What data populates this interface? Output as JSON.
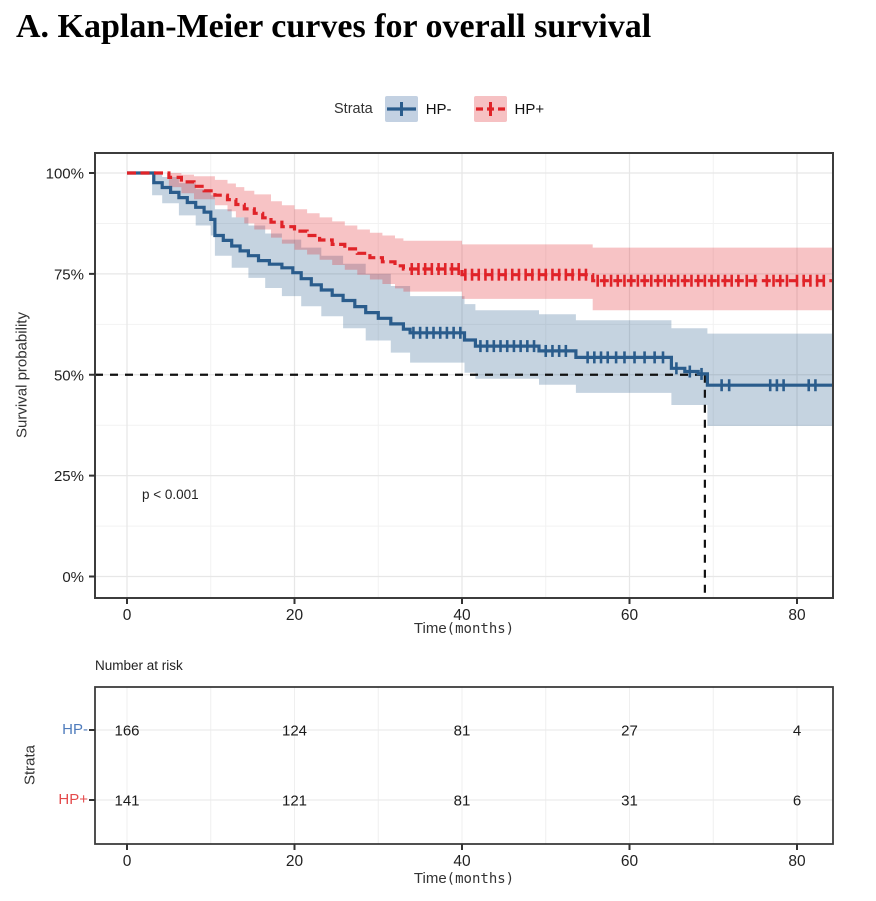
{
  "title": "A. Kaplan-Meier curves for overall survival",
  "legend": {
    "label": "Strata",
    "items": [
      {
        "label": "HP-",
        "line_color": "#2a5c8c",
        "key_bg": "#c3d1e2",
        "style": "solid"
      },
      {
        "label": "HP+",
        "line_color": "#e02328",
        "key_bg": "#f6c1c3",
        "style": "dashed"
      }
    ]
  },
  "main_plot": {
    "ylabel": "Survival probability",
    "xlabel_text": "Time",
    "xlabel_mono": "(months)",
    "pvalue": "p < 0.001",
    "ytick_labels": [
      "0%",
      "25%",
      "50%",
      "75%",
      "100%"
    ],
    "xtick_labels": [
      "0",
      "20",
      "40",
      "60",
      "80"
    ]
  },
  "risk_table": {
    "title": "Number at risk",
    "ylabel": "Strata",
    "xlabel_text": "Time",
    "xlabel_mono": "(months)",
    "xtick_labels": [
      "0",
      "20",
      "40",
      "60",
      "80"
    ],
    "rows": [
      {
        "label": "HP-",
        "label_color": "#4f7cbc",
        "values": [
          "166",
          "124",
          "81",
          "27",
          "4"
        ]
      },
      {
        "label": "HP+",
        "label_color": "#e44b4c",
        "values": [
          "141",
          "121",
          "81",
          "31",
          "6"
        ]
      }
    ]
  },
  "chart_data": {
    "type": "line",
    "subtype": "kaplan-meier-step",
    "title": "A. Kaplan-Meier curves for overall survival",
    "xlabel": "Time(months)",
    "ylabel": "Survival probability",
    "xlim": [
      0,
      84.3
    ],
    "ylim_percent": [
      0,
      100
    ],
    "xticks": [
      0,
      20,
      40,
      60,
      80
    ],
    "minor_xticks": [
      10,
      30,
      50,
      70
    ],
    "yticks_percent": [
      0,
      25,
      50,
      75,
      100
    ],
    "minor_yticks_percent": [
      12.5,
      37.5,
      62.5,
      87.5
    ],
    "grid": true,
    "legend_position": "top",
    "pvalue": "p < 0.001",
    "median_reference": {
      "time": 69,
      "survival_percent": 50
    },
    "series": [
      {
        "name": "HP-",
        "color": "#2a5c8c",
        "band_alpha": 0.27,
        "line_style": "solid",
        "steps": [
          [
            0,
            100
          ],
          [
            3,
            100
          ],
          [
            3.2,
            97.6
          ],
          [
            4.2,
            96.4
          ],
          [
            5.2,
            95.2
          ],
          [
            6.2,
            93.9
          ],
          [
            7.2,
            92.7
          ],
          [
            8.2,
            91.5
          ],
          [
            9.2,
            90.3
          ],
          [
            10,
            88.5
          ],
          [
            10.5,
            84.5
          ],
          [
            11.5,
            83.3
          ],
          [
            12.5,
            81.9
          ],
          [
            13.5,
            80.7
          ],
          [
            14.5,
            79.5
          ],
          [
            15.7,
            78.3
          ],
          [
            17,
            77.4
          ],
          [
            18.5,
            76.5
          ],
          [
            19.8,
            75.3
          ],
          [
            20.8,
            73.8
          ],
          [
            22,
            72.3
          ],
          [
            23.2,
            71
          ],
          [
            24.5,
            69.7
          ],
          [
            25.8,
            68.4
          ],
          [
            27.2,
            66.9
          ],
          [
            28.5,
            65.4
          ],
          [
            30,
            64
          ],
          [
            31.5,
            62.6
          ],
          [
            33,
            61.3
          ],
          [
            33.8,
            60.4
          ],
          [
            40.3,
            58.6
          ],
          [
            41.6,
            57.1
          ],
          [
            49.2,
            55.9
          ],
          [
            53.6,
            54.3
          ],
          [
            65,
            51.6
          ],
          [
            66.6,
            50.8
          ],
          [
            68.2,
            50.2
          ],
          [
            69.3,
            47.4
          ],
          [
            84.3,
            47.4
          ]
        ],
        "censors": [
          [
            34.2,
            60.4
          ],
          [
            35,
            60.4
          ],
          [
            35.8,
            60.4
          ],
          [
            36.6,
            60.4
          ],
          [
            37.4,
            60.4
          ],
          [
            38.2,
            60.4
          ],
          [
            39,
            60.4
          ],
          [
            39.8,
            60.4
          ],
          [
            42.2,
            57.1
          ],
          [
            43,
            57.1
          ],
          [
            43.8,
            57.1
          ],
          [
            44.6,
            57.1
          ],
          [
            45.4,
            57.1
          ],
          [
            46.2,
            57.1
          ],
          [
            47,
            57.1
          ],
          [
            47.8,
            57.1
          ],
          [
            48.6,
            57.1
          ],
          [
            50,
            55.9
          ],
          [
            50.8,
            55.9
          ],
          [
            51.6,
            55.9
          ],
          [
            52.4,
            55.9
          ],
          [
            55,
            54.3
          ],
          [
            55.8,
            54.3
          ],
          [
            56.6,
            54.3
          ],
          [
            57.4,
            54.3
          ],
          [
            58.4,
            54.3
          ],
          [
            59.4,
            54.3
          ],
          [
            60.6,
            54.3
          ],
          [
            61.8,
            54.3
          ],
          [
            63,
            54.3
          ],
          [
            64,
            54.3
          ],
          [
            65.6,
            51.6
          ],
          [
            67.2,
            50.8
          ],
          [
            68.6,
            50.2
          ],
          [
            71,
            47.4
          ],
          [
            71.9,
            47.4
          ],
          [
            76.8,
            47.4
          ],
          [
            77.6,
            47.4
          ],
          [
            78.4,
            47.4
          ],
          [
            81.4,
            47.4
          ],
          [
            82.2,
            47.4
          ]
        ],
        "band_upper": [
          [
            0,
            100
          ],
          [
            3,
            100
          ],
          [
            4.2,
            99
          ],
          [
            6.2,
            97.5
          ],
          [
            8.2,
            96
          ],
          [
            10,
            94.5
          ],
          [
            10.5,
            91
          ],
          [
            12.5,
            89
          ],
          [
            14.5,
            87
          ],
          [
            16.5,
            85
          ],
          [
            18.5,
            83.5
          ],
          [
            20.8,
            81.5
          ],
          [
            23.2,
            79.5
          ],
          [
            25.8,
            77.5
          ],
          [
            28.5,
            75
          ],
          [
            31.5,
            72
          ],
          [
            33.8,
            69.5
          ],
          [
            40.3,
            67.5
          ],
          [
            41.6,
            66
          ],
          [
            49.2,
            65
          ],
          [
            53.6,
            63.5
          ],
          [
            65,
            61.5
          ],
          [
            69.3,
            60.2
          ],
          [
            84.3,
            60.2
          ]
        ],
        "band_lower": [
          [
            0,
            100
          ],
          [
            3,
            94.5
          ],
          [
            4.2,
            92.5
          ],
          [
            6.2,
            89.5
          ],
          [
            8.2,
            87
          ],
          [
            10,
            84.5
          ],
          [
            10.5,
            79.5
          ],
          [
            12.5,
            76.5
          ],
          [
            14.5,
            74
          ],
          [
            16.5,
            71.5
          ],
          [
            18.5,
            69.5
          ],
          [
            20.8,
            67
          ],
          [
            23.2,
            64.5
          ],
          [
            25.8,
            61.5
          ],
          [
            28.5,
            58.5
          ],
          [
            31.5,
            55.5
          ],
          [
            33.8,
            53
          ],
          [
            40.3,
            50.5
          ],
          [
            41.6,
            49
          ],
          [
            49.2,
            47.5
          ],
          [
            53.6,
            45.5
          ],
          [
            65,
            42.5
          ],
          [
            69.3,
            37.3
          ],
          [
            84.3,
            37.3
          ]
        ]
      },
      {
        "name": "HP+",
        "color": "#e02328",
        "band_alpha": 0.27,
        "line_style": "dashed",
        "steps": [
          [
            0,
            100
          ],
          [
            4.8,
            100
          ],
          [
            5,
            98.9
          ],
          [
            6.5,
            97.8
          ],
          [
            8,
            96.7
          ],
          [
            9.2,
            95.6
          ],
          [
            10.5,
            94.5
          ],
          [
            12,
            93.4
          ],
          [
            13,
            92.2
          ],
          [
            14,
            91.1
          ],
          [
            15.2,
            90
          ],
          [
            16.2,
            88.9
          ],
          [
            17.2,
            87.8
          ],
          [
            18.5,
            86.7
          ],
          [
            20,
            85.6
          ],
          [
            21.5,
            84.5
          ],
          [
            23,
            83.4
          ],
          [
            24.5,
            82.3
          ],
          [
            26,
            81.2
          ],
          [
            27.5,
            80.1
          ],
          [
            29,
            79
          ],
          [
            30.5,
            78
          ],
          [
            32,
            77
          ],
          [
            33,
            76.2
          ],
          [
            40,
            74.8
          ],
          [
            55.6,
            73.3
          ],
          [
            84.3,
            73.3
          ]
        ],
        "censors": [
          [
            34,
            76.2
          ],
          [
            34.8,
            76.2
          ],
          [
            35.6,
            76.2
          ],
          [
            36.4,
            76.2
          ],
          [
            37.2,
            76.2
          ],
          [
            38,
            76.2
          ],
          [
            38.8,
            76.2
          ],
          [
            39.6,
            76.2
          ],
          [
            40.4,
            74.8
          ],
          [
            41.2,
            74.8
          ],
          [
            42,
            74.8
          ],
          [
            42.8,
            74.8
          ],
          [
            43.6,
            74.8
          ],
          [
            44.4,
            74.8
          ],
          [
            45.2,
            74.8
          ],
          [
            46,
            74.8
          ],
          [
            46.8,
            74.8
          ],
          [
            47.6,
            74.8
          ],
          [
            48.4,
            74.8
          ],
          [
            49.2,
            74.8
          ],
          [
            50,
            74.8
          ],
          [
            50.8,
            74.8
          ],
          [
            51.6,
            74.8
          ],
          [
            52.4,
            74.8
          ],
          [
            53.2,
            74.8
          ],
          [
            54,
            74.8
          ],
          [
            54.8,
            74.8
          ],
          [
            56.2,
            73.3
          ],
          [
            57,
            73.3
          ],
          [
            57.8,
            73.3
          ],
          [
            58.6,
            73.3
          ],
          [
            59.4,
            73.3
          ],
          [
            60.2,
            73.3
          ],
          [
            61,
            73.3
          ],
          [
            61.8,
            73.3
          ],
          [
            62.6,
            73.3
          ],
          [
            63.4,
            73.3
          ],
          [
            64.2,
            73.3
          ],
          [
            65,
            73.3
          ],
          [
            65.8,
            73.3
          ],
          [
            66.6,
            73.3
          ],
          [
            67.4,
            73.3
          ],
          [
            68.2,
            73.3
          ],
          [
            69,
            73.3
          ],
          [
            69.8,
            73.3
          ],
          [
            70.6,
            73.3
          ],
          [
            71.4,
            73.3
          ],
          [
            72.2,
            73.3
          ],
          [
            73,
            73.3
          ],
          [
            74,
            73.3
          ],
          [
            75,
            73.3
          ],
          [
            76.4,
            73.3
          ],
          [
            77.2,
            73.3
          ],
          [
            78,
            73.3
          ],
          [
            78.8,
            73.3
          ],
          [
            80,
            73.3
          ],
          [
            80.8,
            73.3
          ],
          [
            81.6,
            73.3
          ],
          [
            82.4,
            73.3
          ],
          [
            83.2,
            73.3
          ]
        ],
        "band_upper": [
          [
            0,
            100
          ],
          [
            5,
            100
          ],
          [
            6.5,
            99.6
          ],
          [
            8,
            99.2
          ],
          [
            10.5,
            98.3
          ],
          [
            12,
            97.4
          ],
          [
            13,
            96.5
          ],
          [
            14,
            95.6
          ],
          [
            15.2,
            94.7
          ],
          [
            17.2,
            93
          ],
          [
            18.5,
            92
          ],
          [
            20,
            91
          ],
          [
            21.5,
            90
          ],
          [
            23,
            89
          ],
          [
            24.5,
            88
          ],
          [
            26,
            87
          ],
          [
            27.5,
            86
          ],
          [
            29,
            85.2
          ],
          [
            30.5,
            84.5
          ],
          [
            32,
            83.8
          ],
          [
            33,
            83.2
          ],
          [
            40,
            82.3
          ],
          [
            55.6,
            81.5
          ],
          [
            84.3,
            81.5
          ]
        ],
        "band_lower": [
          [
            0,
            100
          ],
          [
            5,
            96.5
          ],
          [
            6.5,
            95
          ],
          [
            8,
            93.5
          ],
          [
            10.5,
            92
          ],
          [
            12,
            90.5
          ],
          [
            13,
            89
          ],
          [
            14,
            87.5
          ],
          [
            15.2,
            86
          ],
          [
            17.2,
            84
          ],
          [
            18.5,
            82.5
          ],
          [
            20,
            81
          ],
          [
            21.5,
            79.8
          ],
          [
            23,
            78.5
          ],
          [
            24.5,
            77.2
          ],
          [
            26,
            76
          ],
          [
            27.5,
            74.8
          ],
          [
            29,
            73.6
          ],
          [
            30.5,
            72.5
          ],
          [
            32,
            71.4
          ],
          [
            33,
            70.6
          ],
          [
            40,
            68.8
          ],
          [
            55.6,
            66
          ],
          [
            84.3,
            66
          ]
        ]
      }
    ],
    "risk_table": {
      "title": "Number at risk",
      "ylabel": "Strata",
      "times": [
        0,
        20,
        40,
        60,
        80
      ],
      "rows": [
        {
          "name": "HP-",
          "counts": [
            166,
            124,
            81,
            27,
            4
          ]
        },
        {
          "name": "HP+",
          "counts": [
            141,
            121,
            81,
            31,
            6
          ]
        }
      ]
    }
  }
}
